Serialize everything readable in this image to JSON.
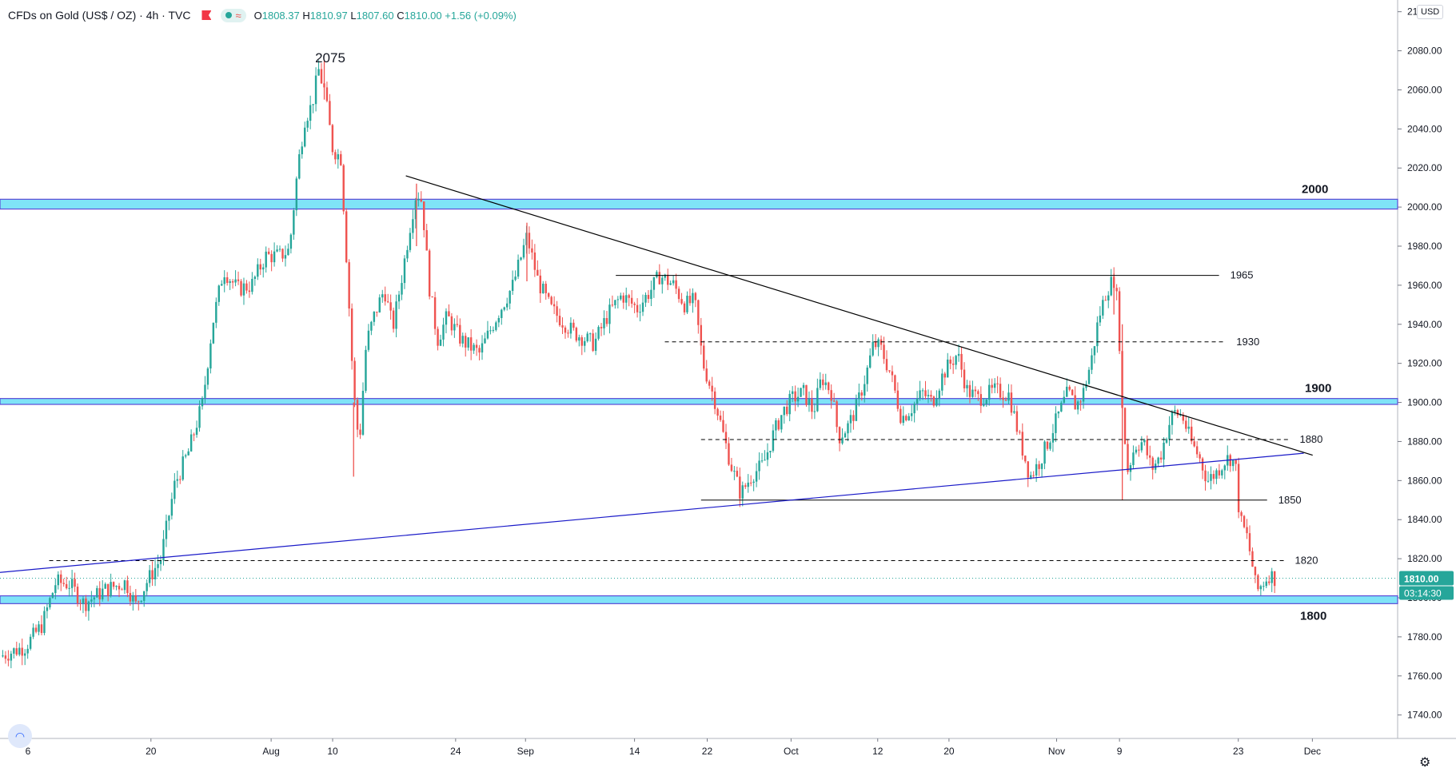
{
  "header": {
    "symbol": "CFDs on Gold (US$ / OZ) · 4h · TVC",
    "approx_icon": "≈",
    "ohlc": {
      "open_label": "O",
      "open": "1808.37",
      "high_label": "H",
      "high": "1810.97",
      "low_label": "L",
      "low": "1807.60",
      "close_label": "C",
      "close": "1810.00",
      "change": "+1.56 (+0.09%)"
    }
  },
  "currency_label": "USD",
  "icons": {
    "flag": "red-flag-icon",
    "status": "status-dot-icon",
    "settings": "gear-icon",
    "logo": "tradingview-logo-icon"
  },
  "colors": {
    "up": "#26a69a",
    "down": "#ef5350",
    "zone_fill": "#7fe3f7",
    "zone_border": "#5b49d6",
    "trendline_blue": "#1a1ac8",
    "line_black": "#000000",
    "price_label_bg": "#26a69a"
  },
  "chart_data": {
    "type": "candlestick",
    "timeframe": "4h",
    "y_ticks": [
      "2100.00",
      "2080.00",
      "2060.00",
      "2040.00",
      "2020.00",
      "2000.00",
      "1980.00",
      "1960.00",
      "1940.00",
      "1920.00",
      "1900.00",
      "1880.00",
      "1860.00",
      "1840.00",
      "1820.00",
      "1800.00",
      "1780.00",
      "1760.00",
      "1740.00"
    ],
    "ylim": [
      1728,
      2106
    ],
    "x_ticks": [
      {
        "label": "6",
        "t": 0.02
      },
      {
        "label": "20",
        "t": 0.108
      },
      {
        "label": "Aug",
        "t": 0.194
      },
      {
        "label": "10",
        "t": 0.238
      },
      {
        "label": "24",
        "t": 0.326
      },
      {
        "label": "Sep",
        "t": 0.376
      },
      {
        "label": "14",
        "t": 0.454
      },
      {
        "label": "22",
        "t": 0.506
      },
      {
        "label": "Oct",
        "t": 0.566
      },
      {
        "label": "12",
        "t": 0.628
      },
      {
        "label": "20",
        "t": 0.679
      },
      {
        "label": "Nov",
        "t": 0.756
      },
      {
        "label": "9",
        "t": 0.801
      },
      {
        "label": "23",
        "t": 0.886
      },
      {
        "label": "Dec",
        "t": 0.939
      }
    ],
    "price_path": [
      [
        0.0,
        1770
      ],
      [
        0.018,
        1775
      ],
      [
        0.03,
        1786
      ],
      [
        0.04,
        1808
      ],
      [
        0.05,
        1807
      ],
      [
        0.06,
        1797
      ],
      [
        0.075,
        1804
      ],
      [
        0.09,
        1808
      ],
      [
        0.097,
        1796
      ],
      [
        0.105,
        1808
      ],
      [
        0.115,
        1820
      ],
      [
        0.125,
        1858
      ],
      [
        0.135,
        1875
      ],
      [
        0.145,
        1900
      ],
      [
        0.152,
        1940
      ],
      [
        0.16,
        1968
      ],
      [
        0.17,
        1958
      ],
      [
        0.18,
        1960
      ],
      [
        0.19,
        1975
      ],
      [
        0.2,
        1975
      ],
      [
        0.207,
        1978
      ],
      [
        0.213,
        2020
      ],
      [
        0.218,
        2045
      ],
      [
        0.223,
        2052
      ],
      [
        0.228,
        2070
      ],
      [
        0.232,
        2060
      ],
      [
        0.238,
        2030
      ],
      [
        0.244,
        2025
      ],
      [
        0.249,
        1960
      ],
      [
        0.253,
        1905
      ],
      [
        0.257,
        1878
      ],
      [
        0.262,
        1930
      ],
      [
        0.268,
        1945
      ],
      [
        0.275,
        1958
      ],
      [
        0.281,
        1938
      ],
      [
        0.287,
        1962
      ],
      [
        0.294,
        1993
      ],
      [
        0.298,
        2008
      ],
      [
        0.302,
        2003
      ],
      [
        0.307,
        1960
      ],
      [
        0.313,
        1932
      ],
      [
        0.32,
        1944
      ],
      [
        0.33,
        1932
      ],
      [
        0.343,
        1925
      ],
      [
        0.356,
        1945
      ],
      [
        0.367,
        1960
      ],
      [
        0.377,
        1985
      ],
      [
        0.385,
        1962
      ],
      [
        0.394,
        1948
      ],
      [
        0.41,
        1936
      ],
      [
        0.425,
        1930
      ],
      [
        0.435,
        1945
      ],
      [
        0.445,
        1955
      ],
      [
        0.456,
        1948
      ],
      [
        0.466,
        1958
      ],
      [
        0.472,
        1965
      ],
      [
        0.482,
        1960
      ],
      [
        0.49,
        1950
      ],
      [
        0.497,
        1952
      ],
      [
        0.503,
        1920
      ],
      [
        0.512,
        1900
      ],
      [
        0.518,
        1882
      ],
      [
        0.523,
        1868
      ],
      [
        0.53,
        1853
      ],
      [
        0.538,
        1863
      ],
      [
        0.546,
        1868
      ],
      [
        0.553,
        1883
      ],
      [
        0.56,
        1895
      ],
      [
        0.567,
        1902
      ],
      [
        0.575,
        1905
      ],
      [
        0.582,
        1895
      ],
      [
        0.588,
        1913
      ],
      [
        0.595,
        1905
      ],
      [
        0.6,
        1882
      ],
      [
        0.607,
        1888
      ],
      [
        0.613,
        1898
      ],
      [
        0.62,
        1915
      ],
      [
        0.625,
        1930
      ],
      [
        0.63,
        1928
      ],
      [
        0.637,
        1915
      ],
      [
        0.645,
        1892
      ],
      [
        0.652,
        1897
      ],
      [
        0.66,
        1905
      ],
      [
        0.667,
        1900
      ],
      [
        0.675,
        1915
      ],
      [
        0.685,
        1925
      ],
      [
        0.692,
        1906
      ],
      [
        0.7,
        1902
      ],
      [
        0.712,
        1906
      ],
      [
        0.722,
        1904
      ],
      [
        0.73,
        1880
      ],
      [
        0.737,
        1862
      ],
      [
        0.744,
        1870
      ],
      [
        0.75,
        1880
      ],
      [
        0.757,
        1893
      ],
      [
        0.764,
        1905
      ],
      [
        0.77,
        1898
      ],
      [
        0.775,
        1905
      ],
      [
        0.781,
        1922
      ],
      [
        0.786,
        1943
      ],
      [
        0.792,
        1958
      ],
      [
        0.797,
        1963
      ],
      [
        0.8,
        1948
      ],
      [
        0.803,
        1895
      ],
      [
        0.807,
        1865
      ],
      [
        0.812,
        1878
      ],
      [
        0.818,
        1880
      ],
      [
        0.824,
        1866
      ],
      [
        0.83,
        1872
      ],
      [
        0.836,
        1888
      ],
      [
        0.84,
        1895
      ],
      [
        0.846,
        1893
      ],
      [
        0.852,
        1880
      ],
      [
        0.858,
        1872
      ],
      [
        0.864,
        1860
      ],
      [
        0.87,
        1864
      ],
      [
        0.876,
        1870
      ],
      [
        0.88,
        1872
      ],
      [
        0.884,
        1868
      ],
      [
        0.887,
        1840
      ],
      [
        0.892,
        1832
      ],
      [
        0.896,
        1817
      ],
      [
        0.899,
        1803
      ],
      [
        0.904,
        1808
      ],
      [
        0.908,
        1812
      ],
      [
        0.912,
        1810
      ]
    ],
    "wicks": [
      {
        "t": 0.232,
        "high": 2075,
        "low": 2055
      },
      {
        "t": 0.253,
        "high": 1900,
        "low": 1862
      },
      {
        "t": 0.298,
        "high": 2012,
        "low": 1980
      },
      {
        "t": 0.377,
        "high": 1992,
        "low": 1962
      },
      {
        "t": 0.797,
        "high": 1966,
        "low": 1945
      },
      {
        "t": 0.803,
        "high": 1940,
        "low": 1850
      }
    ],
    "peak_label": "2075",
    "zones": [
      {
        "label": "2000",
        "low": 1999,
        "high": 2004
      },
      {
        "label": "1900",
        "low": 1899,
        "high": 1902
      },
      {
        "label": "1800",
        "low": 1797,
        "high": 1801
      }
    ],
    "levels": [
      {
        "label": "1965",
        "value": 1965,
        "from": 0.4406,
        "to": 0.8722,
        "style": "solid"
      },
      {
        "label": "1930",
        "value": 1931,
        "from": 0.4757,
        "to": 0.8766,
        "style": "dashed"
      },
      {
        "label": "1880",
        "value": 1881,
        "from": 0.5016,
        "to": 0.9219,
        "style": "dashed"
      },
      {
        "label": "1850",
        "value": 1850,
        "from": 0.5016,
        "to": 0.9066,
        "style": "solid"
      },
      {
        "label": "1820",
        "value": 1819,
        "from": 0.0352,
        "to": 0.9185,
        "style": "dashed"
      }
    ],
    "trendlines": [
      {
        "name": "descending",
        "from": [
          0.2904,
          2016
        ],
        "to": [
          0.9392,
          1873
        ],
        "color": "black"
      },
      {
        "name": "ascending",
        "from": [
          0.0,
          1813
        ],
        "to": [
          0.9328,
          1874
        ],
        "color": "blue"
      }
    ],
    "last_price": "1810.00",
    "countdown": "03:14:30",
    "last_price_value": 1810
  }
}
